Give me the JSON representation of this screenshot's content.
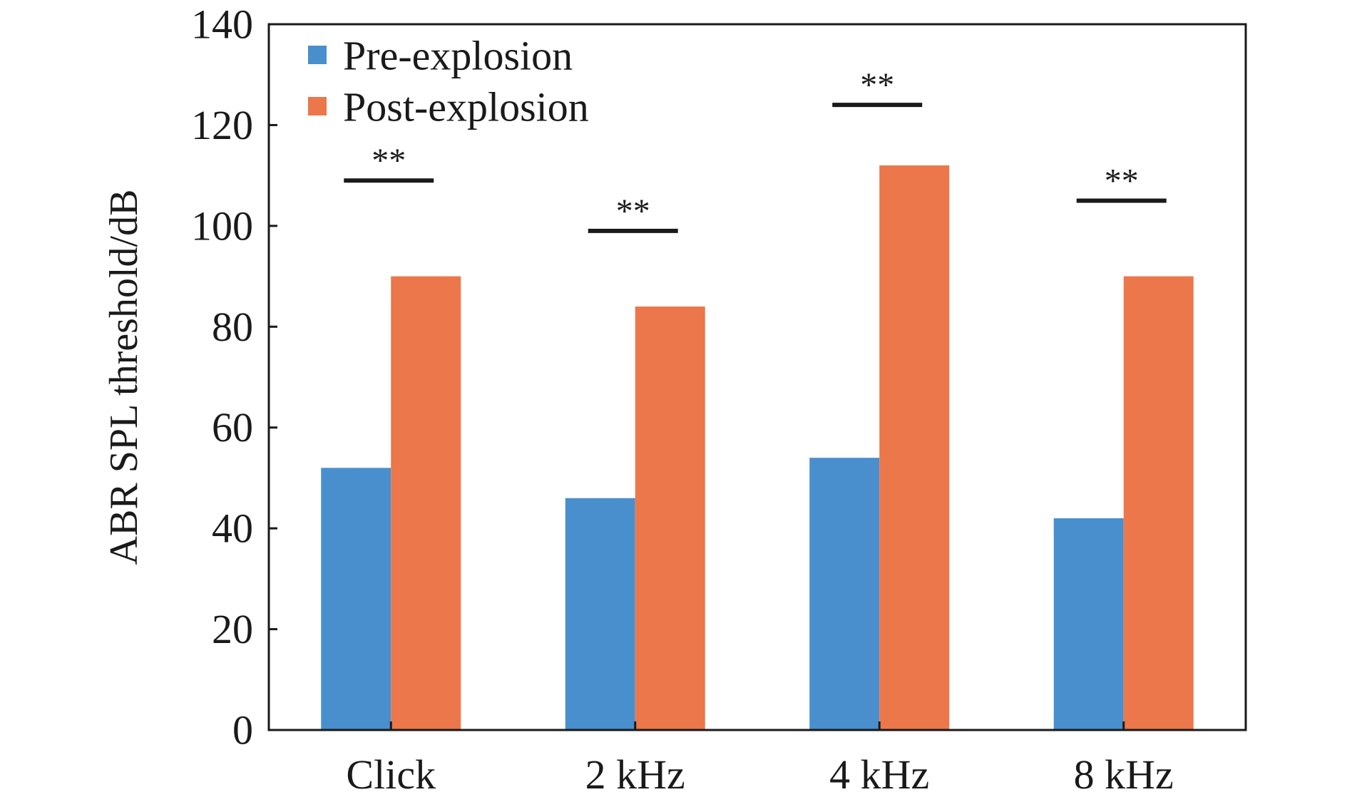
{
  "chart_data": {
    "type": "bar",
    "title": "",
    "xlabel": "",
    "ylabel": "ABR SPL threshold/dB",
    "ylim": [
      0,
      140
    ],
    "yticks": [
      0,
      20,
      40,
      60,
      80,
      100,
      120,
      140
    ],
    "categories": [
      "Click",
      "2 kHz",
      "4 kHz",
      "8 kHz"
    ],
    "series": [
      {
        "name": "Pre-explosion",
        "color": "#4a8fcd",
        "values": [
          52,
          46,
          54,
          42
        ]
      },
      {
        "name": "Post-explosion",
        "color": "#ec774a",
        "values": [
          90,
          84,
          112,
          90
        ]
      }
    ],
    "significance": [
      {
        "category": "Click",
        "label": "**",
        "level": 109
      },
      {
        "category": "2 kHz",
        "label": "**",
        "level": 99
      },
      {
        "category": "4 kHz",
        "label": "**",
        "level": 124
      },
      {
        "category": "8 kHz",
        "label": "**",
        "level": 105
      }
    ],
    "legend_position": "top-left",
    "grid": false
  }
}
